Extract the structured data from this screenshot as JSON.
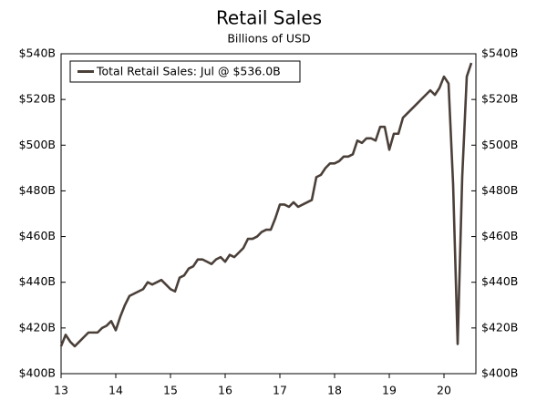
{
  "chart_data": {
    "type": "line",
    "title": "Retail Sales",
    "subtitle": "Billions of USD",
    "categories": [
      "13",
      null,
      null,
      null,
      null,
      null,
      null,
      null,
      null,
      null,
      null,
      null,
      "14",
      null,
      null,
      null,
      null,
      null,
      null,
      null,
      null,
      null,
      null,
      null,
      "15",
      null,
      null,
      null,
      null,
      null,
      null,
      null,
      null,
      null,
      null,
      null,
      "16",
      null,
      null,
      null,
      null,
      null,
      null,
      null,
      null,
      null,
      null,
      null,
      "17",
      null,
      null,
      null,
      null,
      null,
      null,
      null,
      null,
      null,
      null,
      null,
      "18",
      null,
      null,
      null,
      null,
      null,
      null,
      null,
      null,
      null,
      null,
      null,
      "19",
      null,
      null,
      null,
      null,
      null,
      null,
      null,
      null,
      null,
      null,
      null,
      "20",
      null,
      null,
      null,
      null,
      null,
      null
    ],
    "series": [
      {
        "name": "Total Retail Sales: Jul @ $536.0B",
        "color": "#4b4039",
        "values": [
          412,
          417,
          414,
          412,
          414,
          416,
          418,
          418,
          418,
          420,
          421,
          423,
          419,
          425,
          430,
          434,
          435,
          436,
          437,
          440,
          439,
          440,
          441,
          439,
          437,
          436,
          442,
          443,
          446,
          447,
          450,
          450,
          449,
          448,
          450,
          451,
          449,
          452,
          451,
          453,
          455,
          459,
          459,
          460,
          462,
          463,
          463,
          468,
          474,
          474,
          473,
          475,
          473,
          474,
          475,
          476,
          486,
          487,
          490,
          492,
          492,
          493,
          495,
          495,
          496,
          502,
          501,
          503,
          503,
          502,
          508,
          508,
          498,
          505,
          505,
          512,
          514,
          516,
          518,
          520,
          522,
          524,
          522,
          525,
          530,
          527,
          483,
          413,
          486,
          530,
          536
        ]
      }
    ],
    "ylim": [
      400,
      540
    ],
    "yticks": [
      {
        "value": 400,
        "label": "$400B"
      },
      {
        "value": 420,
        "label": "$420B"
      },
      {
        "value": 440,
        "label": "$440B"
      },
      {
        "value": 460,
        "label": "$460B"
      },
      {
        "value": 480,
        "label": "$480B"
      },
      {
        "value": 500,
        "label": "$500B"
      },
      {
        "value": 520,
        "label": "$520B"
      },
      {
        "value": 540,
        "label": "$540B"
      }
    ],
    "y2lim": [
      400,
      540
    ],
    "y2ticks": [
      {
        "value": 400,
        "label": "$400B"
      },
      {
        "value": 420,
        "label": "$420B"
      },
      {
        "value": 440,
        "label": "$440B"
      },
      {
        "value": 460,
        "label": "$460B"
      },
      {
        "value": 480,
        "label": "$480B"
      },
      {
        "value": 500,
        "label": "$500B"
      },
      {
        "value": 520,
        "label": "$520B"
      },
      {
        "value": 540,
        "label": "$540B"
      }
    ],
    "legend": "upper left",
    "grid": false
  }
}
